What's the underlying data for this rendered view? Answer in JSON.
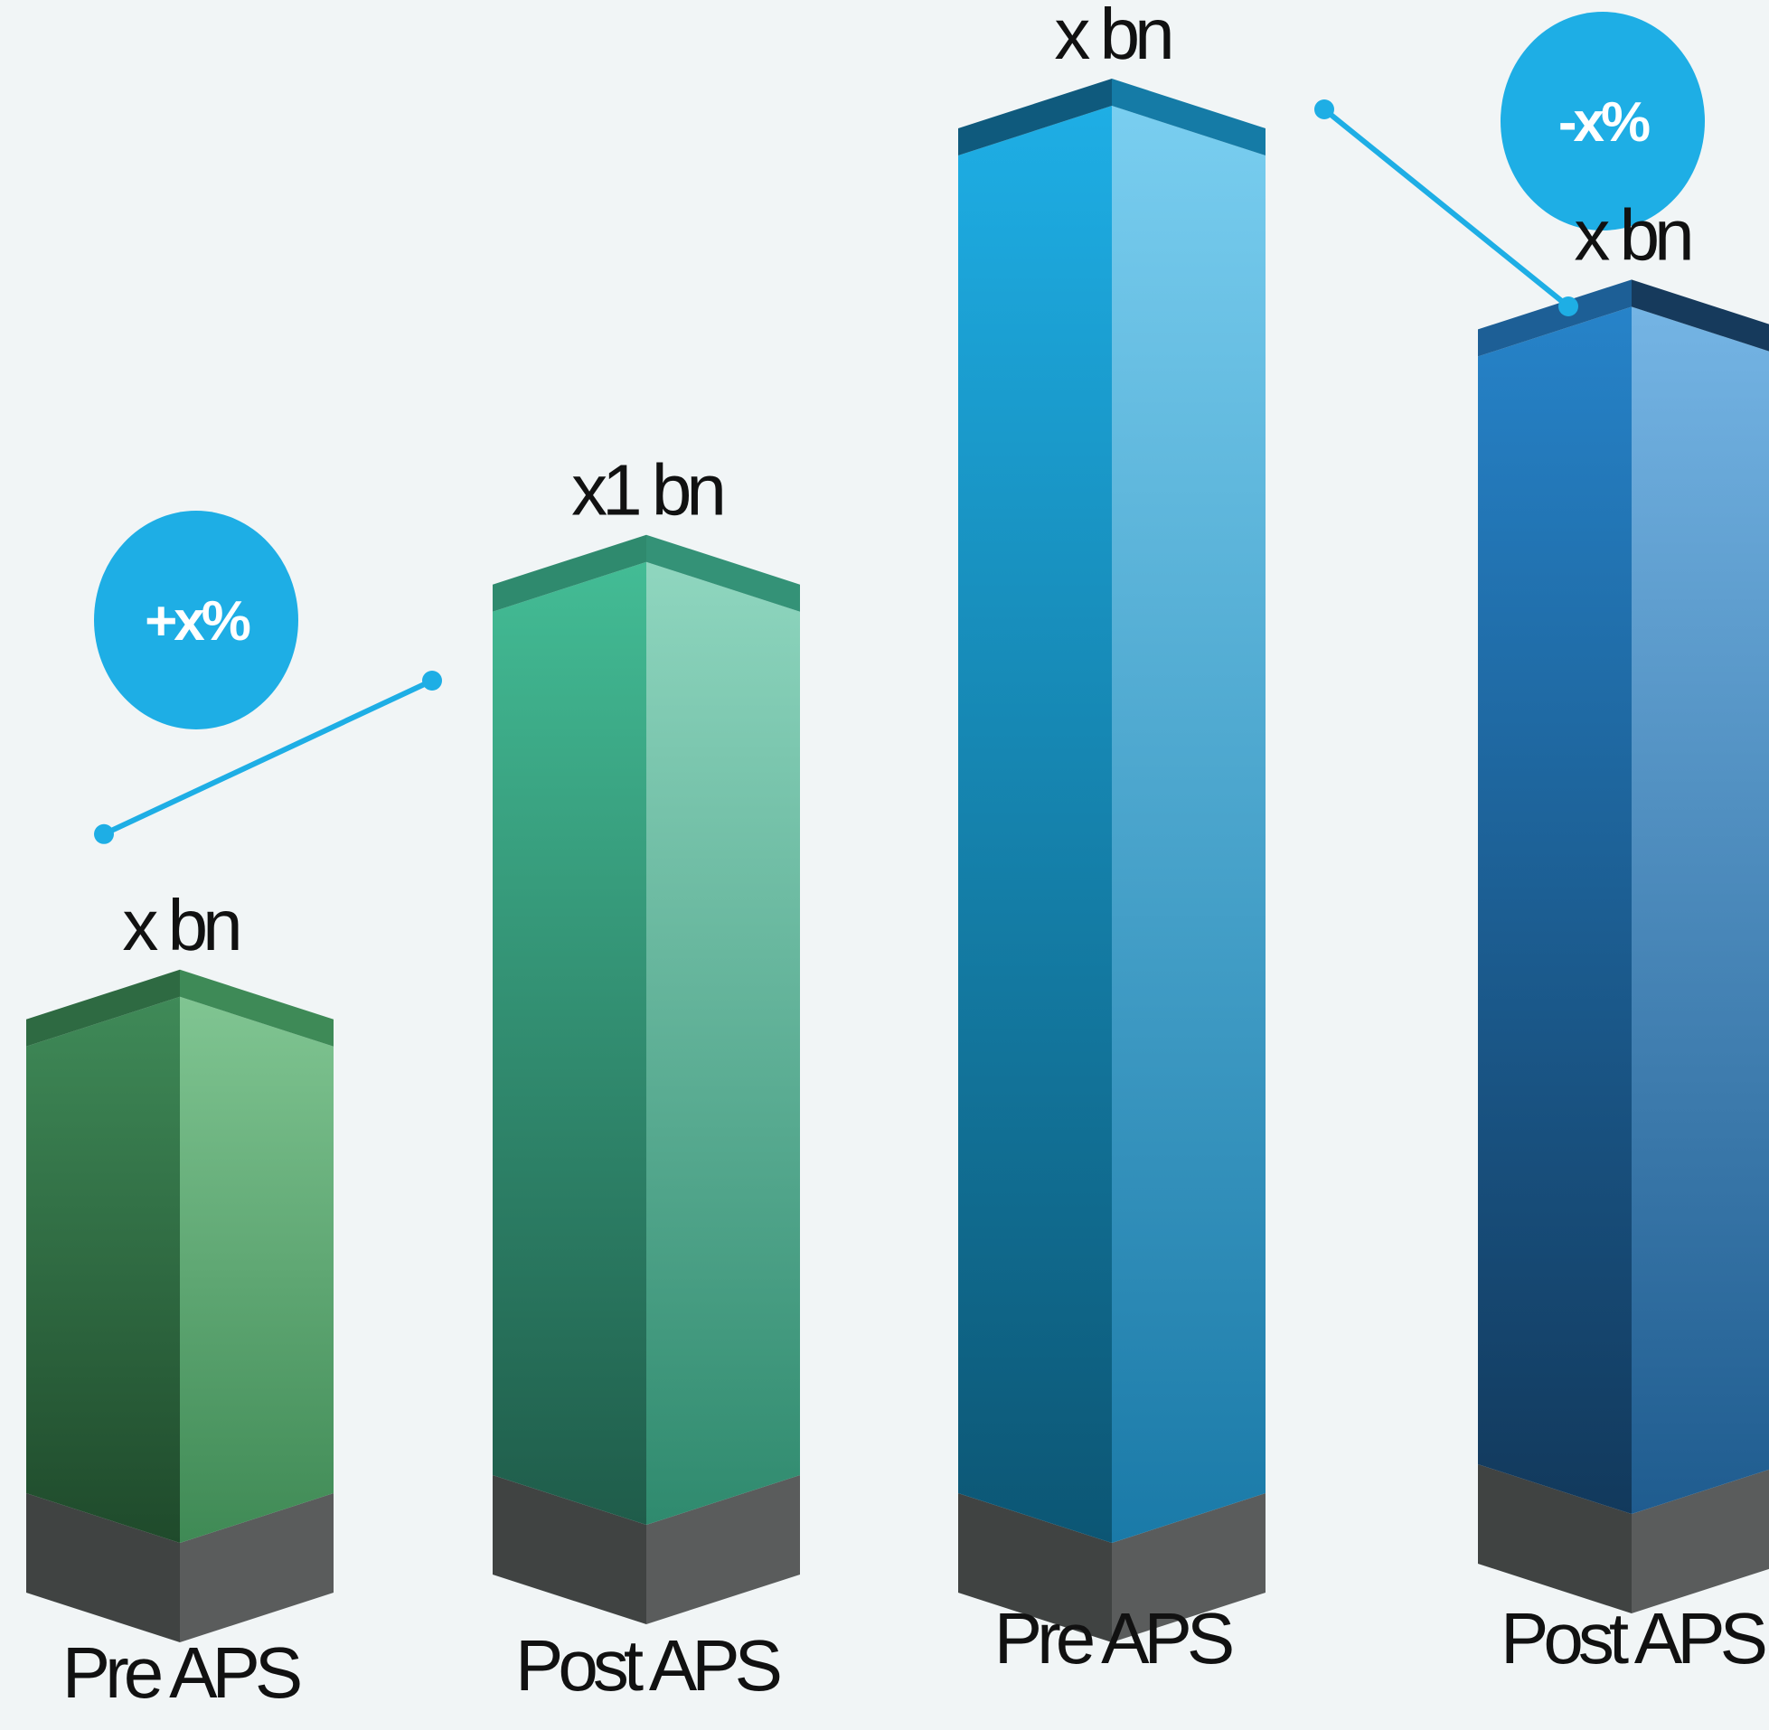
{
  "chart_data": {
    "type": "bar",
    "style": "3d-columns",
    "categories": [
      "Pre APS",
      "Post APS",
      "Pre APS",
      "Post APS"
    ],
    "value_labels": [
      "x bn",
      "x1 bn",
      "x bn",
      "x bn"
    ],
    "values": [
      38,
      67,
      100,
      84
    ],
    "groups": [
      {
        "bars": [
          0,
          1
        ],
        "change_label": "+x%",
        "colors": {
          "front": "#2f7a4a",
          "side": "#7cc28f",
          "top": "#3b8757",
          "base": "#424645"
        }
      },
      {
        "bars": [
          2,
          3
        ],
        "change_label": "-x%",
        "colors": {
          "front": "#1aa0d8",
          "side": "#6ec6ec",
          "top": "#0f6d93",
          "base": "#424645"
        }
      }
    ],
    "bar_colors": [
      {
        "front_top": "#3f8a58",
        "front_bottom": "#1f4a2b",
        "side_top": "#80c592",
        "side_bottom": "#3f8a55",
        "cap_front": "#2e6a42",
        "cap_side": "#3e8a57"
      },
      {
        "front_top": "#43bc95",
        "front_bottom": "#1f5c4a",
        "side_top": "#8fd6bf",
        "side_bottom": "#2f8a6e",
        "cap_front": "#2f8a6e",
        "cap_side": "#349277"
      },
      {
        "front_top": "#1eaee5",
        "front_bottom": "#0c5674",
        "side_top": "#79cef0",
        "side_bottom": "#1a7aa8",
        "cap_front": "#0f5a7d",
        "cap_side": "#157ba6"
      },
      {
        "front_top": "#2683c9",
        "front_bottom": "#12395c",
        "side_top": "#74b4e4",
        "side_bottom": "#1f5c8f",
        "cap_front": "#1d5f96",
        "cap_side": "#163a5c"
      }
    ],
    "bubble_color": "#1eaee5",
    "ylim": [
      0,
      100
    ],
    "title": "",
    "xlabel": "",
    "ylabel": ""
  }
}
